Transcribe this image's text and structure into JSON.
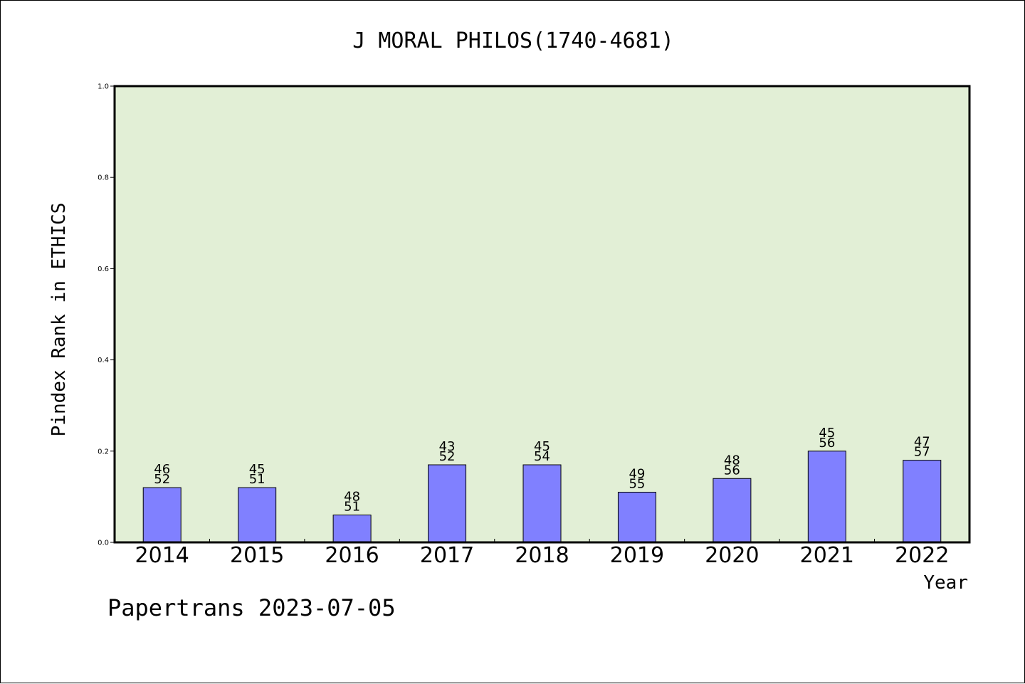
{
  "chart_data": {
    "type": "bar",
    "title": "J MORAL PHILOS(1740-4681)",
    "xlabel": "Year",
    "ylabel": "Pindex Rank in ETHICS",
    "categories": [
      "2014",
      "2015",
      "2016",
      "2017",
      "2018",
      "2019",
      "2020",
      "2021",
      "2022"
    ],
    "values": [
      0.12,
      0.12,
      0.06,
      0.17,
      0.17,
      0.11,
      0.14,
      0.2,
      0.18
    ],
    "bar_labels": [
      [
        "46",
        "52"
      ],
      [
        "45",
        "51"
      ],
      [
        "48",
        "51"
      ],
      [
        "43",
        "52"
      ],
      [
        "45",
        "54"
      ],
      [
        "49",
        "55"
      ],
      [
        "48",
        "56"
      ],
      [
        "45",
        "56"
      ],
      [
        "47",
        "57"
      ]
    ],
    "ylim": [
      0,
      1.0
    ],
    "yticks": [
      "0.0",
      "0.2",
      "0.4",
      "0.6",
      "0.8",
      "1.0"
    ],
    "grid": false,
    "colors": {
      "plot_background": "#e2efd6",
      "bar_fill": "#8080ff",
      "bar_stroke": "#000000"
    }
  },
  "footer": {
    "credit": "Papertrans 2023-07-05"
  }
}
